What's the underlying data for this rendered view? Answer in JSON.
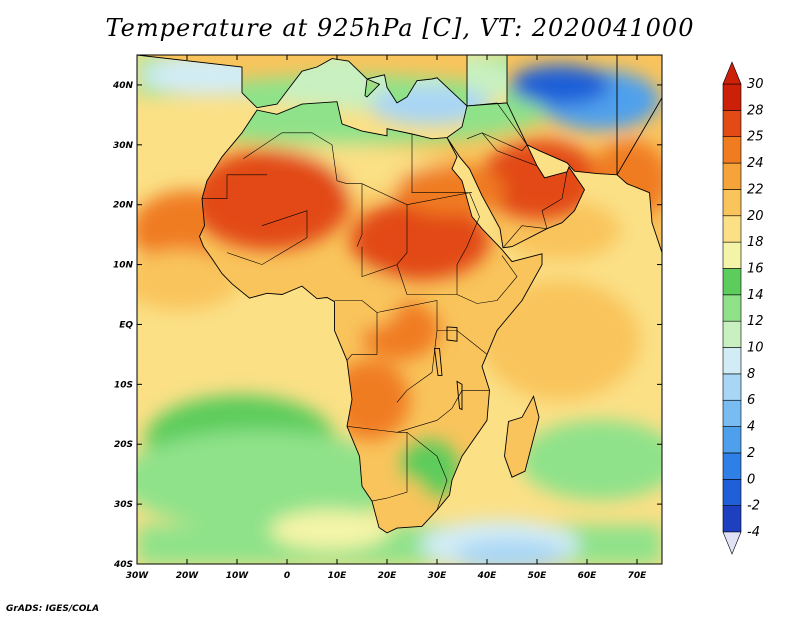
{
  "title": "Temperature at 925hPa [C], VT: 2020041000",
  "credit": "GrADS: IGES/COLA",
  "map": {
    "lon_range": [
      -30,
      75
    ],
    "lat_range": [
      -40,
      45
    ],
    "lon_ticks": [
      {
        "value": -30,
        "label": "30W"
      },
      {
        "value": -20,
        "label": "20W"
      },
      {
        "value": -10,
        "label": "10W"
      },
      {
        "value": 0,
        "label": "0"
      },
      {
        "value": 10,
        "label": "10E"
      },
      {
        "value": 20,
        "label": "20E"
      },
      {
        "value": 30,
        "label": "30E"
      },
      {
        "value": 40,
        "label": "40E"
      },
      {
        "value": 50,
        "label": "50E"
      },
      {
        "value": 60,
        "label": "60E"
      },
      {
        "value": 70,
        "label": "70E"
      }
    ],
    "lat_ticks": [
      {
        "value": 40,
        "label": "40N"
      },
      {
        "value": 30,
        "label": "30N"
      },
      {
        "value": 20,
        "label": "20N"
      },
      {
        "value": 10,
        "label": "10N"
      },
      {
        "value": 0,
        "label": "EQ"
      },
      {
        "value": -10,
        "label": "10S"
      },
      {
        "value": -20,
        "label": "20S"
      },
      {
        "value": -30,
        "label": "30S"
      },
      {
        "value": -40,
        "label": "40S"
      }
    ]
  },
  "colorbar": {
    "levels": [
      "-4",
      "-2",
      "0",
      "2",
      "4",
      "6",
      "8",
      "10",
      "12",
      "14",
      "16",
      "18",
      "20",
      "22",
      "24",
      "25",
      "28",
      "30"
    ],
    "colors": [
      "#1a1a8c",
      "#1e3fbf",
      "#1f5fd8",
      "#2f80e6",
      "#4fa0ec",
      "#78bcf2",
      "#a8d6f5",
      "#d2ecf6",
      "#c8f0c0",
      "#8fe28a",
      "#5ccc5c",
      "#f4f4a8",
      "#fbe086",
      "#f9c45c",
      "#f6a43a",
      "#f07c22",
      "#e24a16",
      "#cc2008"
    ],
    "under_color": "#e2e2f6",
    "over_color": "#cc2008"
  }
}
